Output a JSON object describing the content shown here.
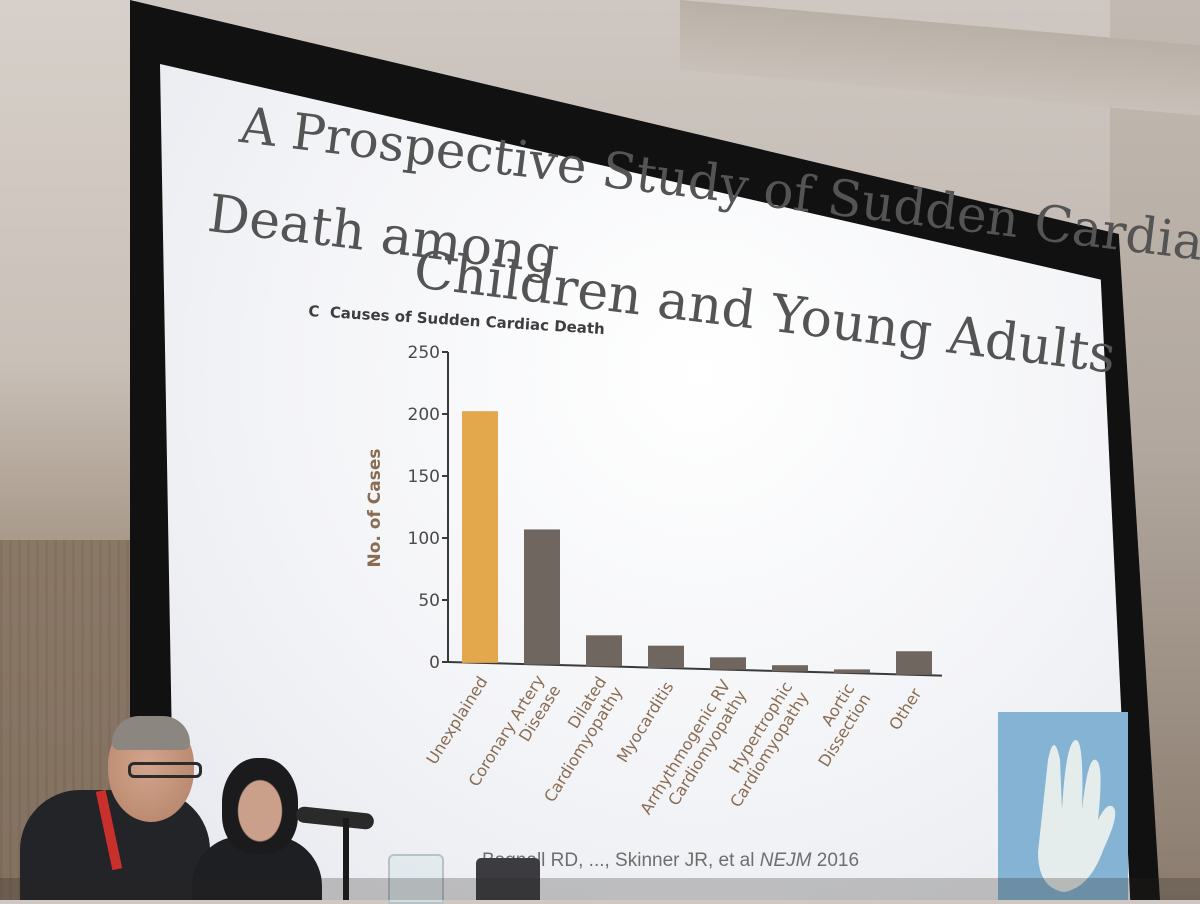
{
  "slide": {
    "title_lines": [
      "A Prospective Study of Sudden Cardiac",
      "Death among Children and Young Adults"
    ],
    "citation": "Bagnall RD, ..., Skinner JR, et al",
    "citation_journal": "NEJM",
    "citation_year": "2016",
    "logo_icon": "handprint-icon",
    "colors": {
      "highlight_bar": "#e3a84c",
      "bar": "#6f6660",
      "axis_label": "#8a6c52",
      "title": "#545454"
    }
  },
  "chart_data": {
    "type": "bar",
    "panel_label": "C",
    "title": "Causes of Sudden Cardiac Death",
    "ylabel": "No. of Cases",
    "xlabel": "",
    "ylim": [
      0,
      250
    ],
    "yticks": [
      0,
      50,
      100,
      150,
      200,
      250
    ],
    "grid": false,
    "categories": [
      [
        "Unexplained"
      ],
      [
        "Coronary Artery",
        "Disease"
      ],
      [
        "Dilated",
        "Cardiomyopathy"
      ],
      [
        "Myocarditis"
      ],
      [
        "Arrhythmogenic RV",
        "Cardiomyopathy"
      ],
      [
        "Hypertrophic",
        "Cardiomyopathy"
      ],
      [
        "Aortic",
        "Dissection"
      ],
      [
        "Other"
      ]
    ],
    "values": [
      203,
      109,
      25,
      18,
      10,
      5,
      3,
      19
    ],
    "highlight_index": 0
  }
}
